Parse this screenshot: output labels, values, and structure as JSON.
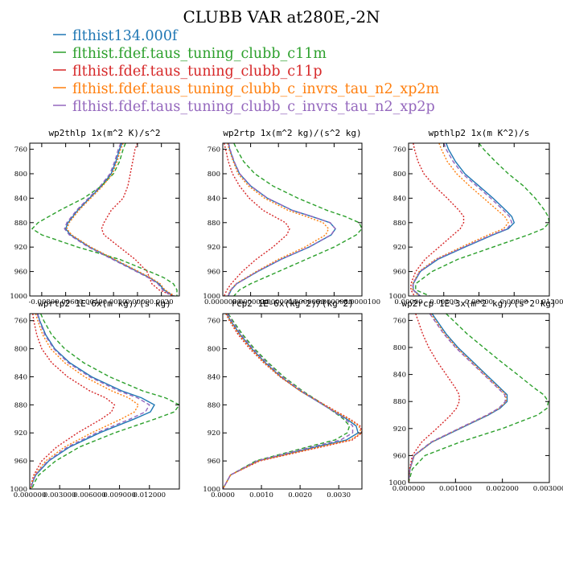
{
  "figure": {
    "title": "CLUBB VAR at280E,-2N"
  },
  "legend": [
    {
      "label": "flthist134.000f",
      "color": "#1f77b4"
    },
    {
      "label": "flthist.fdef.taus_tuning_clubb_c11m",
      "color": "#2ca02c"
    },
    {
      "label": "flthist.fdef.taus_tuning_clubb_c11p",
      "color": "#d62728"
    },
    {
      "label": "flthist.fdef.taus_tuning_clubb_c_invrs_tau_n2_xp2m",
      "color": "#ff7f0e"
    },
    {
      "label": "flthist.fdef.taus_tuning_clubb_c_invrs_tau_n2_xp2p",
      "color": "#9467bd"
    }
  ],
  "chart_data": [
    {
      "type": "line",
      "title": "wp2thlp  1x(m^2 K)/s^2",
      "xlim": [
        -0.009,
        0.0035
      ],
      "ylim": [
        1000,
        750
      ],
      "xticks": [
        -0.008,
        -0.006,
        -0.004,
        -0.002,
        0.0,
        0.002
      ],
      "xtick_labels": [
        "-0.0080",
        "-0.0060",
        "-0.0040",
        "-0.0020",
        "0.0000",
        "0.0020"
      ],
      "yticks": [
        760,
        800,
        840,
        880,
        920,
        960,
        1000
      ],
      "y": [
        750,
        760,
        780,
        800,
        820,
        840,
        860,
        880,
        890,
        900,
        920,
        940,
        960,
        970,
        980,
        990,
        1000
      ],
      "series": [
        {
          "color": "#1f77b4",
          "x": [
            -0.0013,
            -0.0015,
            -0.0018,
            -0.0022,
            -0.003,
            -0.004,
            -0.005,
            -0.0058,
            -0.006,
            -0.0056,
            -0.004,
            -0.002,
            0.0,
            0.001,
            0.0018,
            0.0022,
            0.003
          ]
        },
        {
          "color": "#2ca02c",
          "x": [
            -0.001,
            -0.0012,
            -0.0015,
            -0.002,
            -0.003,
            -0.0045,
            -0.0065,
            -0.0083,
            -0.0088,
            -0.008,
            -0.005,
            -0.0015,
            0.001,
            0.0022,
            0.003,
            0.0033,
            0.0033
          ]
        },
        {
          "color": "#d62728",
          "x": [
            0.0,
            -0.0002,
            -0.0004,
            -0.0006,
            -0.0008,
            -0.0012,
            -0.0022,
            -0.0028,
            -0.003,
            -0.0028,
            -0.0015,
            -0.0002,
            0.0008,
            0.001,
            0.0012,
            0.0018,
            0.003
          ]
        },
        {
          "color": "#ff7f0e",
          "x": [
            -0.0012,
            -0.0014,
            -0.0017,
            -0.0021,
            -0.0029,
            -0.0039,
            -0.0049,
            -0.0057,
            -0.0059,
            -0.0055,
            -0.0039,
            -0.0019,
            0.0001,
            0.0011,
            0.0019,
            0.0023,
            0.0031
          ]
        },
        {
          "color": "#9467bd",
          "x": [
            -0.0014,
            -0.0016,
            -0.0019,
            -0.0023,
            -0.0031,
            -0.0041,
            -0.0051,
            -0.0059,
            -0.0061,
            -0.0057,
            -0.0041,
            -0.0021,
            -0.0001,
            0.0009,
            0.0017,
            0.0021,
            0.0029
          ]
        }
      ]
    },
    {
      "type": "line",
      "title": "wp2rtp  1x(m^2 kg)/(s^2 kg)",
      "xlim": [
        0.0,
        1e-05
      ],
      "ylim": [
        1000,
        750
      ],
      "xticks": [
        0.0,
        2e-06,
        4e-06,
        6e-06,
        8e-06,
        1e-05
      ],
      "xtick_labels": [
        "0.0000000",
        "0.0000020",
        "0.0000040",
        "0.0000060",
        "0.0000080",
        "0.0000100"
      ],
      "yticks": [
        760,
        800,
        840,
        880,
        920,
        960,
        1000
      ],
      "y": [
        750,
        760,
        780,
        800,
        820,
        840,
        860,
        870,
        880,
        890,
        900,
        920,
        940,
        960,
        980,
        990,
        1000
      ],
      "series": [
        {
          "color": "#1f77b4",
          "x": [
            4e-07,
            5e-07,
            8e-07,
            1.2e-06,
            2e-06,
            3.2e-06,
            5e-06,
            6.4e-06,
            7.7e-06,
            8.1e-06,
            7.8e-06,
            6.2e-06,
            4.2e-06,
            2.5e-06,
            1e-06,
            6e-07,
            4e-07
          ]
        },
        {
          "color": "#2ca02c",
          "x": [
            8e-07,
            1e-06,
            1.5e-06,
            2.3e-06,
            3.6e-06,
            5.4e-06,
            7.5e-06,
            8.8e-06,
            9.8e-06,
            1e-05,
            9.6e-06,
            8e-06,
            6e-06,
            4e-06,
            2e-06,
            1.2e-06,
            8e-07
          ]
        },
        {
          "color": "#d62728",
          "x": [
            1e-07,
            2e-07,
            4e-07,
            7e-07,
            1.2e-06,
            1.9e-06,
            2.9e-06,
            3.7e-06,
            4.5e-06,
            4.8e-06,
            4.6e-06,
            3.6e-06,
            2.4e-06,
            1.4e-06,
            6e-07,
            3e-07,
            1e-07
          ]
        },
        {
          "color": "#ff7f0e",
          "x": [
            3.5e-07,
            4.5e-07,
            7.5e-07,
            1.1e-06,
            1.85e-06,
            3e-06,
            4.7e-06,
            6e-06,
            7.2e-06,
            7.6e-06,
            7.4e-06,
            5.9e-06,
            4e-06,
            2.4e-06,
            9.5e-07,
            5.5e-07,
            3.5e-07
          ]
        },
        {
          "color": "#9467bd",
          "x": [
            4.2e-07,
            5.2e-07,
            8.2e-07,
            1.22e-06,
            2.02e-06,
            3.22e-06,
            5.02e-06,
            6.42e-06,
            7.72e-06,
            8.08e-06,
            7.78e-06,
            6.18e-06,
            4.18e-06,
            2.48e-06,
            9.8e-07,
            5.8e-07,
            3.8e-07
          ]
        }
      ]
    },
    {
      "type": "line",
      "title": "wpthlp2  1x(m K^2)/s",
      "xlim": [
        0.0,
        0.012
      ],
      "ylim": [
        1000,
        750
      ],
      "xticks": [
        0.0,
        0.003,
        0.006,
        0.009,
        0.012
      ],
      "xtick_labels": [
        "0.00000",
        "0.00300",
        "0.00600",
        "0.00900",
        "0.01200"
      ],
      "yticks": [
        760,
        800,
        840,
        880,
        920,
        960,
        1000
      ],
      "y": [
        750,
        760,
        780,
        800,
        820,
        840,
        860,
        870,
        880,
        890,
        900,
        920,
        940,
        960,
        980,
        990,
        1000
      ],
      "series": [
        {
          "color": "#1f77b4",
          "x": [
            0.0032,
            0.0034,
            0.004,
            0.0048,
            0.006,
            0.0072,
            0.0083,
            0.0088,
            0.009,
            0.0085,
            0.0072,
            0.0048,
            0.0025,
            0.001,
            0.0004,
            0.0004,
            0.001
          ]
        },
        {
          "color": "#2ca02c",
          "x": [
            0.006,
            0.0064,
            0.0074,
            0.0085,
            0.0098,
            0.0108,
            0.0116,
            0.0119,
            0.012,
            0.0115,
            0.0102,
            0.0072,
            0.0042,
            0.002,
            0.0006,
            0.0006,
            0.0018
          ]
        },
        {
          "color": "#d62728",
          "x": [
            0.0004,
            0.0005,
            0.0008,
            0.0013,
            0.0022,
            0.0033,
            0.0043,
            0.0047,
            0.0047,
            0.0044,
            0.0038,
            0.0026,
            0.0014,
            0.0006,
            0.0002,
            0.0002,
            0.0005
          ]
        },
        {
          "color": "#ff7f0e",
          "x": [
            0.0026,
            0.0028,
            0.0033,
            0.0041,
            0.0052,
            0.0064,
            0.0076,
            0.0082,
            0.0085,
            0.0081,
            0.0068,
            0.0045,
            0.0023,
            0.0009,
            0.00035,
            0.00035,
            0.0009
          ]
        },
        {
          "color": "#9467bd",
          "x": [
            0.003,
            0.0032,
            0.0038,
            0.0046,
            0.0058,
            0.007,
            0.0081,
            0.0086,
            0.0088,
            0.0084,
            0.0071,
            0.0047,
            0.0024,
            0.00095,
            0.00038,
            0.00038,
            0.00095
          ]
        }
      ]
    },
    {
      "type": "line",
      "title": "wprtp2  1E-6x(m kg)/(s kg)",
      "xlim": [
        0.0,
        0.015
      ],
      "ylim": [
        1000,
        750
      ],
      "xticks": [
        0.0,
        0.003,
        0.006,
        0.009,
        0.012
      ],
      "xtick_labels": [
        "0.000000",
        "0.003000",
        "0.006000",
        "0.009000",
        "0.012000"
      ],
      "yticks": [
        760,
        800,
        840,
        880,
        920,
        960,
        1000
      ],
      "y": [
        750,
        760,
        780,
        800,
        820,
        840,
        860,
        870,
        880,
        890,
        900,
        920,
        940,
        960,
        980,
        990,
        1000
      ],
      "series": [
        {
          "color": "#1f77b4",
          "x": [
            0.0008,
            0.001,
            0.0016,
            0.0025,
            0.004,
            0.0062,
            0.0092,
            0.0112,
            0.0125,
            0.0121,
            0.0105,
            0.007,
            0.004,
            0.0019,
            0.0006,
            0.0003,
            0.0001
          ]
        },
        {
          "color": "#2ca02c",
          "x": [
            0.0011,
            0.0014,
            0.0022,
            0.0035,
            0.0054,
            0.008,
            0.0113,
            0.0136,
            0.015,
            0.0145,
            0.0126,
            0.0085,
            0.005,
            0.0026,
            0.0009,
            0.0005,
            0.0002
          ]
        },
        {
          "color": "#d62728",
          "x": [
            0.0003,
            0.0004,
            0.0007,
            0.0012,
            0.0022,
            0.0038,
            0.006,
            0.0076,
            0.0085,
            0.0082,
            0.0072,
            0.0048,
            0.0027,
            0.0012,
            0.0004,
            0.0002,
            0.0001
          ]
        },
        {
          "color": "#ff7f0e",
          "x": [
            0.0006,
            0.0008,
            0.0013,
            0.0021,
            0.0035,
            0.0055,
            0.0082,
            0.0099,
            0.0109,
            0.0105,
            0.0092,
            0.0062,
            0.0035,
            0.0016,
            0.0005,
            0.00025,
            0.0001
          ]
        },
        {
          "color": "#9467bd",
          "x": [
            0.00075,
            0.00095,
            0.0015,
            0.0024,
            0.00385,
            0.006,
            0.0089,
            0.0108,
            0.012,
            0.0116,
            0.0101,
            0.0067,
            0.0038,
            0.0018,
            0.00055,
            0.00028,
            0.0001
          ]
        }
      ]
    },
    {
      "type": "line",
      "title": "rcp2  1E-6x(kg^2)/(kg^2)",
      "xlim": [
        0.0,
        0.0036
      ],
      "ylim": [
        1000,
        750
      ],
      "xticks": [
        0.0,
        0.001,
        0.002,
        0.003
      ],
      "xtick_labels": [
        "0.0000",
        "0.0010",
        "0.0020",
        "0.0030"
      ],
      "yticks": [
        760,
        800,
        840,
        880,
        920,
        960,
        1000
      ],
      "y": [
        750,
        760,
        780,
        800,
        820,
        840,
        860,
        880,
        900,
        910,
        920,
        930,
        940,
        960,
        980,
        1000
      ],
      "series": [
        {
          "color": "#1f77b4",
          "x": [
            0.0001,
            0.0002,
            0.00045,
            0.00075,
            0.0011,
            0.0015,
            0.002,
            0.0026,
            0.0032,
            0.00345,
            0.0035,
            0.0032,
            0.0024,
            0.0009,
            0.0002,
            0.0
          ]
        },
        {
          "color": "#2ca02c",
          "x": [
            0.00014,
            0.00026,
            0.00052,
            0.00082,
            0.00118,
            0.00158,
            0.00206,
            0.00262,
            0.00312,
            0.00328,
            0.00322,
            0.0029,
            0.0022,
            0.00085,
            0.0002,
            0.0
          ]
        },
        {
          "color": "#d62728",
          "x": [
            8e-05,
            0.00017,
            0.0004,
            0.0007,
            0.00106,
            0.00148,
            0.002,
            0.00264,
            0.00328,
            0.00355,
            0.0036,
            0.00335,
            0.00255,
            0.00095,
            0.0002,
            0.0
          ]
        },
        {
          "color": "#ff7f0e",
          "x": [
            9e-05,
            0.00019,
            0.00043,
            0.00073,
            0.00108,
            0.00149,
            0.002,
            0.00262,
            0.00325,
            0.00352,
            0.00358,
            0.0033,
            0.0025,
            0.00093,
            0.0002,
            0.0
          ]
        },
        {
          "color": "#9467bd",
          "x": [
            0.00012,
            0.00023,
            0.00048,
            0.00078,
            0.00114,
            0.00154,
            0.00203,
            0.0026,
            0.00316,
            0.00336,
            0.00336,
            0.00305,
            0.0023,
            0.00088,
            0.0002,
            0.0
          ]
        }
      ]
    },
    {
      "type": "line",
      "title": "wp2rcp  1E-3x(m^2 kg)/(s^2 kg)",
      "xlim": [
        0.0,
        0.003
      ],
      "ylim": [
        1000,
        750
      ],
      "xticks": [
        0.0,
        0.001,
        0.002,
        0.003
      ],
      "xtick_labels": [
        "0.000000",
        "0.001000",
        "0.002000",
        "0.003000"
      ],
      "yticks": [
        760,
        800,
        840,
        880,
        920,
        960,
        1000
      ],
      "y": [
        750,
        760,
        780,
        800,
        820,
        840,
        860,
        870,
        880,
        890,
        900,
        920,
        940,
        960,
        980,
        1000
      ],
      "series": [
        {
          "color": "#1f77b4",
          "x": [
            0.0005,
            0.0006,
            0.0008,
            0.00105,
            0.00135,
            0.00165,
            0.00195,
            0.0021,
            0.0021,
            0.00195,
            0.0017,
            0.0011,
            0.0005,
            0.00012,
            3e-05,
            0.0
          ]
        },
        {
          "color": "#2ca02c",
          "x": [
            0.0008,
            0.00095,
            0.00125,
            0.0016,
            0.00195,
            0.00232,
            0.00268,
            0.00288,
            0.00298,
            0.00295,
            0.00275,
            0.002,
            0.0011,
            0.00035,
            8e-05,
            0.0
          ]
        },
        {
          "color": "#d62728",
          "x": [
            0.00015,
            0.0002,
            0.0003,
            0.00043,
            0.0006,
            0.0008,
            0.001,
            0.00108,
            0.00108,
            0.00102,
            0.0009,
            0.0006,
            0.00028,
            8e-05,
            2e-05,
            0.0
          ]
        },
        {
          "color": "#ff7f0e",
          "x": [
            0.00047,
            0.00057,
            0.00077,
            0.00102,
            0.00132,
            0.00162,
            0.00192,
            0.00207,
            0.00208,
            0.00193,
            0.00168,
            0.00108,
            0.00049,
            0.00012,
            3e-05,
            0.0
          ]
        },
        {
          "color": "#9467bd",
          "x": [
            0.00045,
            0.00055,
            0.00075,
            0.001,
            0.0013,
            0.0016,
            0.0019,
            0.00205,
            0.00206,
            0.00192,
            0.00167,
            0.00107,
            0.00048,
            0.00011,
            3e-05,
            0.0
          ]
        }
      ]
    }
  ]
}
